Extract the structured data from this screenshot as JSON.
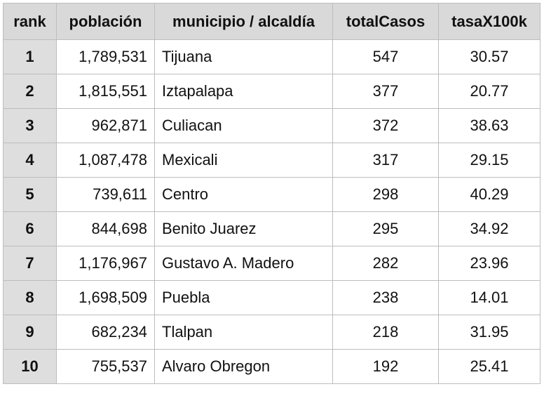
{
  "table": {
    "headers": {
      "rank": "rank",
      "poblacion": "población",
      "municipio": "municipio / alcaldía",
      "totalCasos": "totalCasos",
      "tasa": "tasaX100k"
    },
    "rows": [
      {
        "rank": "1",
        "poblacion": "1,789,531",
        "municipio": "Tijuana",
        "totalCasos": "547",
        "tasa": "30.57"
      },
      {
        "rank": "2",
        "poblacion": "1,815,551",
        "municipio": "Iztapalapa",
        "totalCasos": "377",
        "tasa": "20.77"
      },
      {
        "rank": "3",
        "poblacion": "962,871",
        "municipio": "Culiacan",
        "totalCasos": "372",
        "tasa": "38.63"
      },
      {
        "rank": "4",
        "poblacion": "1,087,478",
        "municipio": "Mexicali",
        "totalCasos": "317",
        "tasa": "29.15"
      },
      {
        "rank": "5",
        "poblacion": "739,611",
        "municipio": "Centro",
        "totalCasos": "298",
        "tasa": "40.29"
      },
      {
        "rank": "6",
        "poblacion": "844,698",
        "municipio": "Benito Juarez",
        "totalCasos": "295",
        "tasa": "34.92"
      },
      {
        "rank": "7",
        "poblacion": "1,176,967",
        "municipio": "Gustavo A. Madero",
        "totalCasos": "282",
        "tasa": "23.96"
      },
      {
        "rank": "8",
        "poblacion": "1,698,509",
        "municipio": "Puebla",
        "totalCasos": "238",
        "tasa": "14.01"
      },
      {
        "rank": "9",
        "poblacion": "682,234",
        "municipio": "Tlalpan",
        "totalCasos": "218",
        "tasa": "31.95"
      },
      {
        "rank": "10",
        "poblacion": "755,537",
        "municipio": "Alvaro Obregon",
        "totalCasos": "192",
        "tasa": "25.41"
      }
    ]
  },
  "colors": {
    "header_bg": "#d9d9d9",
    "rank_bg": "#dedede",
    "border": "#bdbdbd"
  }
}
